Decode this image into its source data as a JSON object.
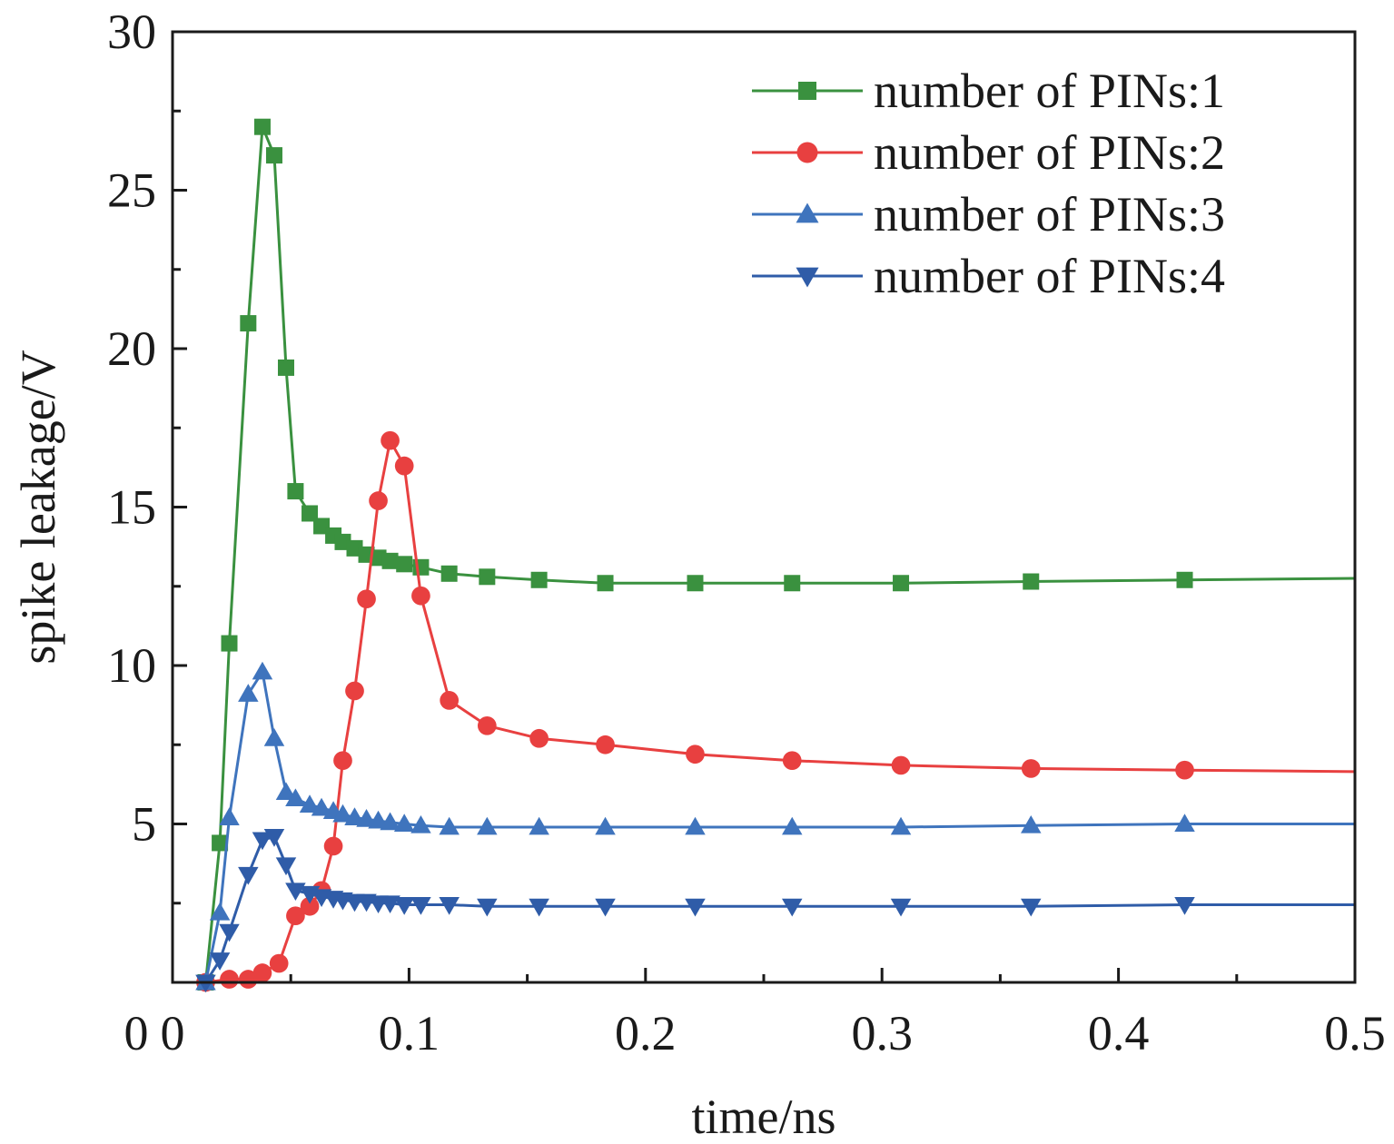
{
  "chart_data": {
    "type": "line",
    "title": "",
    "xlabel": "time/ns",
    "ylabel": "spike leakage/V",
    "xlim": [
      0,
      0.5
    ],
    "ylim": [
      0,
      30
    ],
    "x_ticks": [
      0,
      0.1,
      0.2,
      0.3,
      0.4,
      0.5
    ],
    "x_tick_labels": [
      "0",
      "0.1",
      "0.2",
      "0.3",
      "0.4",
      "0.5"
    ],
    "y_ticks": [
      5,
      10,
      15,
      20,
      25,
      30
    ],
    "y_tick_labels": [
      "5",
      "10",
      "15",
      "20",
      "25",
      "30"
    ],
    "grid": false,
    "legend_position": "top-right",
    "series": [
      {
        "name": "number of PINs:1",
        "color": "#3a913f",
        "marker": "square",
        "x": [
          0.014,
          0.02,
          0.024,
          0.032,
          0.038,
          0.043,
          0.048,
          0.052,
          0.058,
          0.063,
          0.068,
          0.072,
          0.077,
          0.082,
          0.087,
          0.092,
          0.098,
          0.105,
          0.117,
          0.133,
          0.155,
          0.183,
          0.221,
          0.262,
          0.308,
          0.363,
          0.428,
          0.5
        ],
        "y": [
          0.0,
          4.4,
          10.7,
          20.8,
          27.0,
          26.1,
          19.4,
          15.5,
          14.8,
          14.4,
          14.1,
          13.9,
          13.7,
          13.5,
          13.4,
          13.3,
          13.2,
          13.1,
          12.9,
          12.8,
          12.7,
          12.6,
          12.6,
          12.6,
          12.6,
          12.65,
          12.7,
          12.75
        ]
      },
      {
        "name": "number of PINs:2",
        "color": "#e84040",
        "marker": "circle",
        "x": [
          0.014,
          0.024,
          0.032,
          0.038,
          0.045,
          0.052,
          0.058,
          0.063,
          0.068,
          0.072,
          0.077,
          0.082,
          0.087,
          0.092,
          0.098,
          0.105,
          0.117,
          0.133,
          0.155,
          0.183,
          0.221,
          0.262,
          0.308,
          0.363,
          0.428,
          0.5
        ],
        "y": [
          0.0,
          0.1,
          0.1,
          0.3,
          0.6,
          2.1,
          2.4,
          2.9,
          4.3,
          7.0,
          9.2,
          12.1,
          15.2,
          17.1,
          16.3,
          12.2,
          8.9,
          8.1,
          7.7,
          7.5,
          7.2,
          7.0,
          6.85,
          6.75,
          6.7,
          6.65
        ]
      },
      {
        "name": "number of PINs:3",
        "color": "#3f74bd",
        "marker": "triangle-up",
        "x": [
          0.014,
          0.02,
          0.024,
          0.032,
          0.038,
          0.043,
          0.048,
          0.052,
          0.058,
          0.063,
          0.068,
          0.072,
          0.077,
          0.082,
          0.087,
          0.092,
          0.098,
          0.105,
          0.117,
          0.133,
          0.155,
          0.183,
          0.221,
          0.262,
          0.308,
          0.363,
          0.428,
          0.5
        ],
        "y": [
          0.0,
          2.2,
          5.2,
          9.1,
          9.8,
          7.7,
          6.0,
          5.8,
          5.6,
          5.5,
          5.4,
          5.3,
          5.2,
          5.15,
          5.1,
          5.05,
          5.0,
          4.95,
          4.9,
          4.9,
          4.9,
          4.9,
          4.9,
          4.9,
          4.9,
          4.95,
          5.0,
          5.0
        ]
      },
      {
        "name": "number of PINs:4",
        "color": "#2f5ca8",
        "marker": "triangle-down",
        "x": [
          0.014,
          0.02,
          0.024,
          0.032,
          0.038,
          0.043,
          0.048,
          0.052,
          0.058,
          0.063,
          0.068,
          0.072,
          0.077,
          0.082,
          0.087,
          0.092,
          0.098,
          0.105,
          0.117,
          0.133,
          0.155,
          0.183,
          0.221,
          0.262,
          0.308,
          0.363,
          0.428,
          0.5
        ],
        "y": [
          0.0,
          0.7,
          1.6,
          3.4,
          4.5,
          4.6,
          3.7,
          2.9,
          2.8,
          2.7,
          2.65,
          2.6,
          2.55,
          2.55,
          2.5,
          2.5,
          2.45,
          2.45,
          2.45,
          2.4,
          2.4,
          2.4,
          2.4,
          2.4,
          2.4,
          2.4,
          2.45,
          2.45
        ]
      }
    ]
  }
}
